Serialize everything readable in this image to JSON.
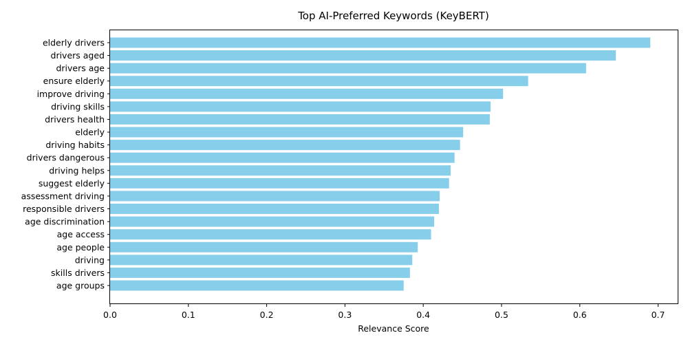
{
  "chart_data": {
    "type": "bar",
    "orientation": "horizontal",
    "title": "Top AI-Preferred Keywords (KeyBERT)",
    "xlabel": "Relevance Score",
    "ylabel": "",
    "xlim": [
      0,
      0.725
    ],
    "xticks": [
      0.0,
      0.1,
      0.2,
      0.3,
      0.4,
      0.5,
      0.6,
      0.7
    ],
    "xtick_labels": [
      "0.0",
      "0.1",
      "0.2",
      "0.3",
      "0.4",
      "0.5",
      "0.6",
      "0.7"
    ],
    "grid": false,
    "bar_color": "#87ceeb",
    "categories": [
      "elderly drivers",
      "drivers aged",
      "drivers age",
      "ensure elderly",
      "improve driving",
      "driving skills",
      "drivers health",
      "elderly",
      "driving habits",
      "drivers dangerous",
      "driving helps",
      "suggest elderly",
      "assessment driving",
      "responsible drivers",
      "age discrimination",
      "age access",
      "age people",
      "driving",
      "skills drivers",
      "age groups"
    ],
    "values": [
      0.69,
      0.646,
      0.608,
      0.534,
      0.502,
      0.486,
      0.485,
      0.451,
      0.447,
      0.44,
      0.435,
      0.433,
      0.421,
      0.42,
      0.414,
      0.41,
      0.393,
      0.386,
      0.383,
      0.375
    ]
  }
}
